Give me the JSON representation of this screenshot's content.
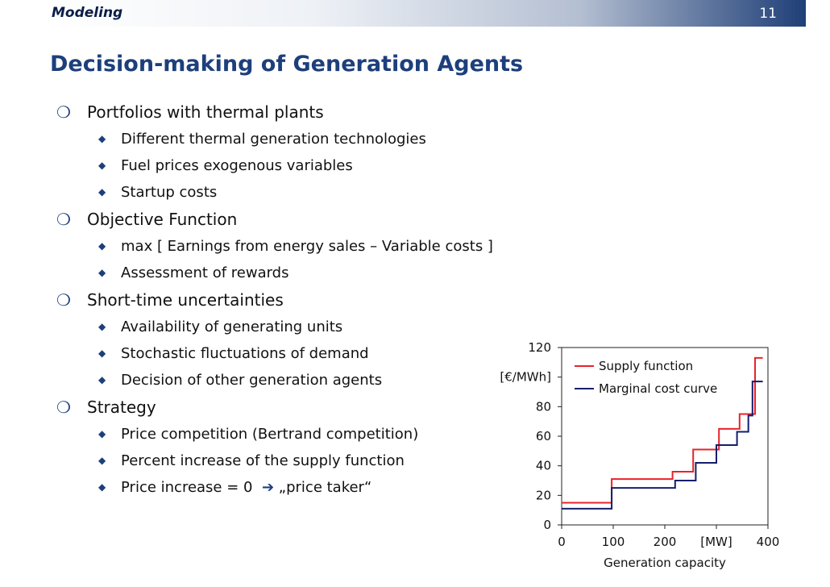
{
  "header": {
    "section": "Modeling",
    "page_number": "11"
  },
  "title": "Decision-making of Generation Agents",
  "bullets": [
    {
      "text": "Portfolios with thermal plants",
      "sub": [
        {
          "text": "Different thermal generation technologies"
        },
        {
          "text": "Fuel prices exogenous variables"
        },
        {
          "text": "Startup costs"
        }
      ]
    },
    {
      "text": "Objective Function",
      "sub": [
        {
          "text": "max [ Earnings from energy sales – Variable costs ]"
        },
        {
          "text": "Assessment of rewards"
        }
      ]
    },
    {
      "text": "Short-time uncertainties",
      "sub": [
        {
          "text": "Availability of generating units"
        },
        {
          "text": "Stochastic fluctuations of demand"
        },
        {
          "text": "Decision of other generation agents"
        }
      ]
    },
    {
      "text": "Strategy",
      "sub": [
        {
          "text": "Price competition (Bertrand competition)"
        },
        {
          "text": "Percent increase of the supply function"
        },
        {
          "text": "Price increase = 0",
          "arrow": "➔",
          "after": "„price taker“"
        }
      ]
    }
  ],
  "chart_data": {
    "type": "line",
    "xlabel": "Generation capacity",
    "ylabel": "[€/MWh]",
    "xlim": [
      0,
      400
    ],
    "ylim": [
      0,
      120
    ],
    "x_ticks": [
      {
        "value": 0,
        "label": "0"
      },
      {
        "value": 100,
        "label": "100"
      },
      {
        "value": 200,
        "label": "200"
      },
      {
        "value": 300,
        "label": "[MW]"
      },
      {
        "value": 400,
        "label": "400"
      }
    ],
    "y_ticks": [
      {
        "value": 0,
        "label": "0"
      },
      {
        "value": 20,
        "label": "20"
      },
      {
        "value": 40,
        "label": "40"
      },
      {
        "value": 60,
        "label": "60"
      },
      {
        "value": 80,
        "label": "80"
      },
      {
        "value": 100,
        "label": "[€/MWh]"
      },
      {
        "value": 120,
        "label": "120"
      }
    ],
    "grid": false,
    "legend_position": "top-right",
    "series": [
      {
        "name": "Supply function",
        "color": "#e8232a",
        "x": [
          0,
          97,
          97,
          215,
          215,
          255,
          255,
          305,
          305,
          345,
          345,
          375,
          375,
          390
        ],
        "y": [
          15,
          15,
          31,
          31,
          36,
          36,
          51,
          51,
          65,
          65,
          75,
          75,
          113,
          113
        ]
      },
      {
        "name": "Marginal cost curve",
        "color": "#131f6b",
        "x": [
          0,
          97,
          97,
          220,
          220,
          260,
          260,
          300,
          300,
          340,
          340,
          362,
          362,
          370,
          370,
          390
        ],
        "y": [
          11,
          11,
          25,
          25,
          30,
          30,
          42,
          42,
          54,
          54,
          63,
          63,
          74,
          74,
          97,
          97
        ]
      }
    ]
  }
}
